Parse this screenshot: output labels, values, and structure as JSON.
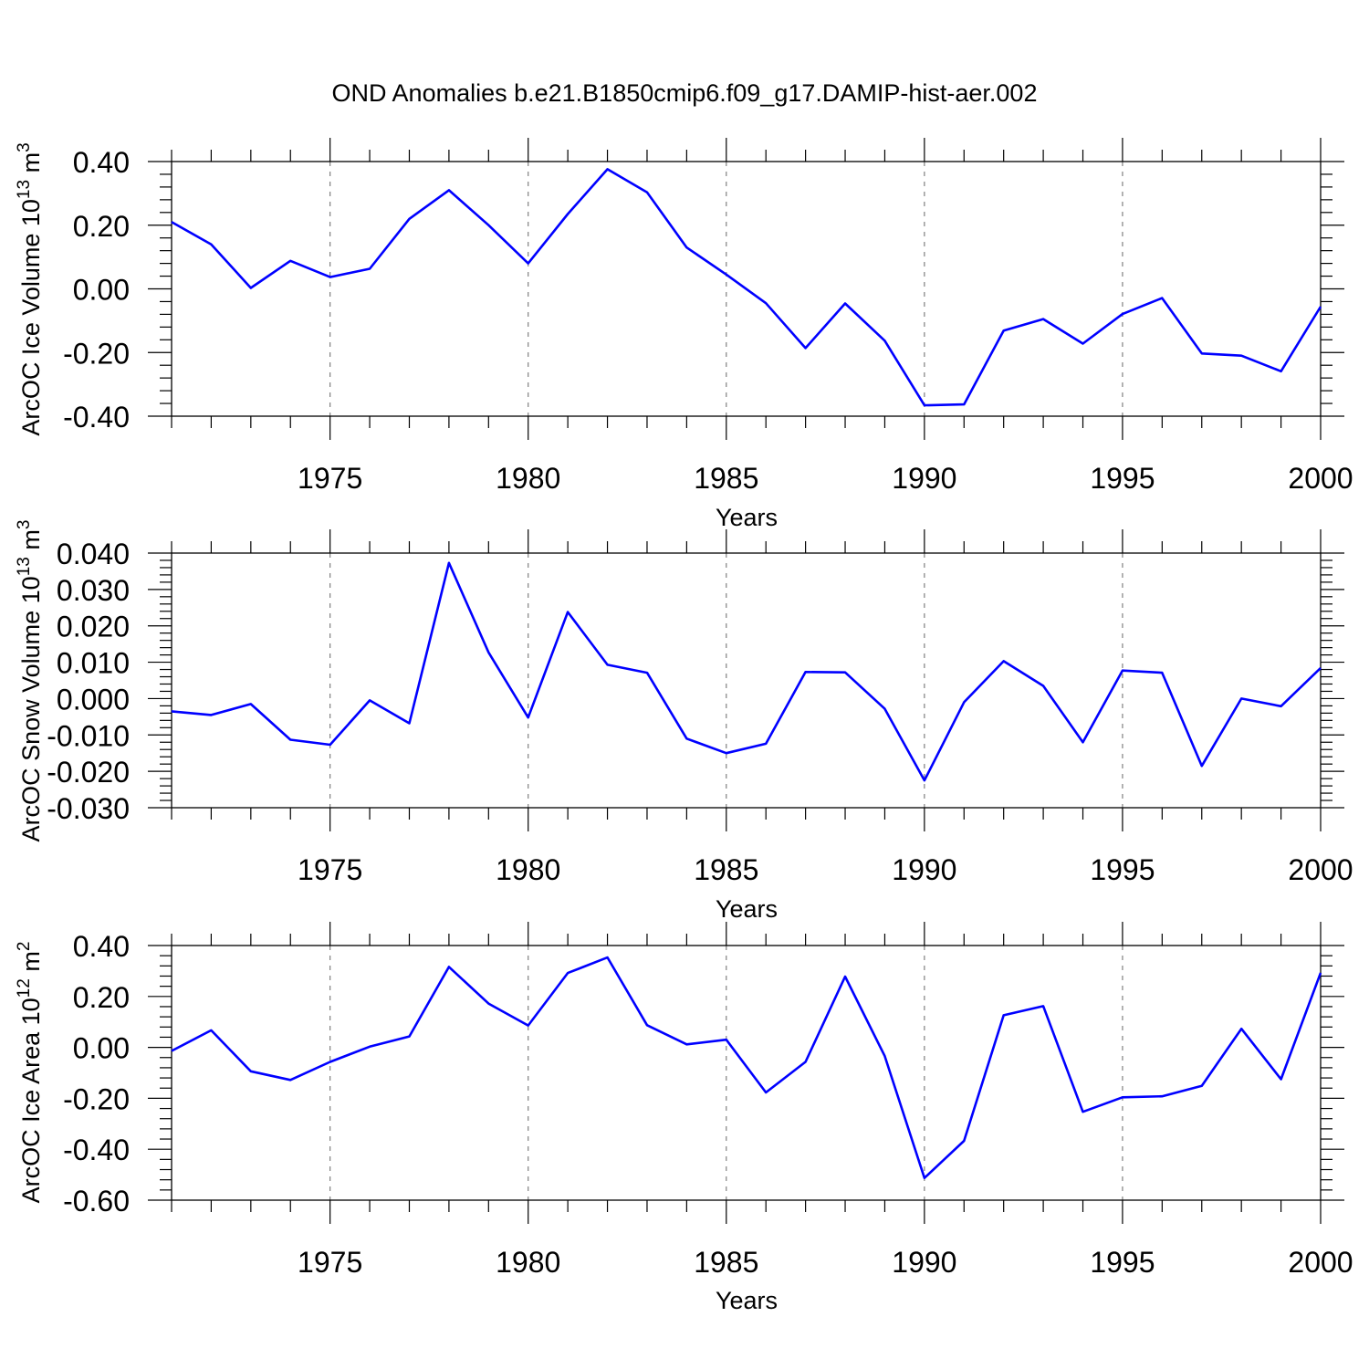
{
  "page": {
    "title": "OND Anomalies b.e21.B1850cmip6.f09_g17.DAMIP-hist-aer.002"
  },
  "colors": {
    "series": "#0000ff",
    "axes": "#000000",
    "grid": "#808080"
  },
  "chart_data": [
    {
      "type": "line",
      "title": "OND Anomalies b.e21.B1850cmip6.f09_g17.DAMIP-hist-aer.002",
      "xlabel": "Years",
      "ylabel": "ArcOC Ice Volume 10",
      "ylabel_exp": "13",
      "ylabel_unit": "m",
      "ylabel_unit_exp": "3",
      "xlim": [
        1971,
        2000
      ],
      "ylim": [
        -0.4,
        0.4
      ],
      "xticks": [
        "1975",
        "1980",
        "1985",
        "1990",
        "1995",
        "2000"
      ],
      "yticks": [
        "0.40",
        "0.20",
        "0.00",
        "-0.20",
        "-0.40"
      ],
      "grid": "dashed vertical at major x ticks",
      "x": [
        1971,
        1972,
        1973,
        1974,
        1975,
        1976,
        1977,
        1978,
        1979,
        1980,
        1981,
        1982,
        1983,
        1984,
        1985,
        1986,
        1987,
        1988,
        1989,
        1990,
        1991,
        1992,
        1993,
        1994,
        1995,
        1996,
        1997,
        1998,
        1999,
        2000
      ],
      "series": [
        {
          "values": [
            0.21,
            0.14,
            0.003,
            0.088,
            0.037,
            0.063,
            0.22,
            0.31,
            0.2,
            0.08,
            0.235,
            0.376,
            0.303,
            0.13,
            0.045,
            -0.045,
            -0.186,
            -0.046,
            -0.163,
            -0.366,
            -0.363,
            -0.131,
            -0.095,
            -0.172,
            -0.079,
            -0.029,
            -0.203,
            -0.21,
            -0.259,
            -0.056
          ]
        }
      ]
    },
    {
      "type": "line",
      "xlabel": "Years",
      "ylabel": "ArcOC Snow Volume 10",
      "ylabel_exp": "13",
      "ylabel_unit": "m",
      "ylabel_unit_exp": "3",
      "xlim": [
        1971,
        2000
      ],
      "ylim": [
        -0.03,
        0.04
      ],
      "xticks": [
        "1975",
        "1980",
        "1985",
        "1990",
        "1995",
        "2000"
      ],
      "yticks": [
        "0.040",
        "0.030",
        "0.020",
        "0.010",
        "0.000",
        "-0.010",
        "-0.020",
        "-0.030"
      ],
      "grid": "dashed vertical at major x ticks",
      "x": [
        1971,
        1972,
        1973,
        1974,
        1975,
        1976,
        1977,
        1978,
        1979,
        1980,
        1981,
        1982,
        1983,
        1984,
        1985,
        1986,
        1987,
        1988,
        1989,
        1990,
        1991,
        1992,
        1993,
        1994,
        1995,
        1996,
        1997,
        1998,
        1999,
        2000
      ],
      "series": [
        {
          "values": [
            -0.0035,
            -0.0045,
            -0.0015,
            -0.0113,
            -0.0127,
            -0.0005,
            -0.0068,
            0.0373,
            0.0127,
            -0.0052,
            0.0238,
            0.0093,
            0.0071,
            -0.011,
            -0.015,
            -0.0124,
            0.0073,
            0.0072,
            -0.0028,
            -0.0225,
            -0.001,
            0.0103,
            0.0035,
            -0.012,
            0.0077,
            0.0071,
            -0.0185,
            0.0,
            -0.0021,
            0.0084
          ]
        }
      ]
    },
    {
      "type": "line",
      "xlabel": "Years",
      "ylabel": "ArcOC Ice Area 10",
      "ylabel_exp": "12",
      "ylabel_unit": "m",
      "ylabel_unit_exp": "2",
      "xlim": [
        1971,
        2000
      ],
      "ylim": [
        -0.6,
        0.4
      ],
      "xticks": [
        "1975",
        "1980",
        "1985",
        "1990",
        "1995",
        "2000"
      ],
      "yticks": [
        "0.40",
        "0.20",
        "0.00",
        "-0.20",
        "-0.40",
        "-0.60"
      ],
      "grid": "dashed vertical at major x ticks",
      "x": [
        1971,
        1972,
        1973,
        1974,
        1975,
        1976,
        1977,
        1978,
        1979,
        1980,
        1981,
        1982,
        1983,
        1984,
        1985,
        1986,
        1987,
        1988,
        1989,
        1990,
        1991,
        1992,
        1993,
        1994,
        1995,
        1996,
        1997,
        1998,
        1999,
        2000
      ],
      "series": [
        {
          "values": [
            -0.014,
            0.067,
            -0.094,
            -0.128,
            -0.057,
            0.003,
            0.043,
            0.316,
            0.172,
            0.086,
            0.292,
            0.353,
            0.087,
            0.012,
            0.03,
            -0.177,
            -0.057,
            0.278,
            -0.034,
            -0.513,
            -0.367,
            0.126,
            0.162,
            -0.253,
            -0.196,
            -0.192,
            -0.151,
            0.073,
            -0.125,
            0.293
          ]
        }
      ]
    }
  ]
}
